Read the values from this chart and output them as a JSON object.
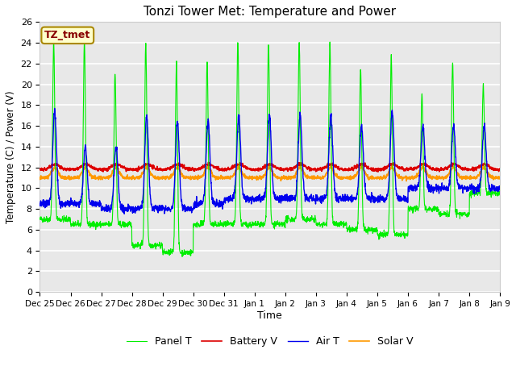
{
  "title": "Tonzi Tower Met: Temperature and Power",
  "xlabel": "Time",
  "ylabel": "Temperature (C) / Power (V)",
  "ylim": [
    0,
    26
  ],
  "legend_labels": [
    "Panel T",
    "Battery V",
    "Air T",
    "Solar V"
  ],
  "legend_colors": [
    "#00ee00",
    "#dd0000",
    "#0000ee",
    "#ff9900"
  ],
  "tag_label": "TZ_tmet",
  "tag_color": "#880000",
  "tag_bg": "#ffffcc",
  "tag_edge": "#aa8800",
  "plot_bg": "#e8e8e8",
  "fig_bg": "#ffffff",
  "grid_color": "#ffffff",
  "xtick_labels": [
    "Dec 25",
    "Dec 26",
    "Dec 27",
    "Dec 28",
    "Dec 29",
    "Dec 30",
    "Dec 31",
    "Jan 1",
    "Jan 2",
    "Jan 3",
    "Jan 4",
    "Jan 5",
    "Jan 6",
    "Jan 7",
    "Jan 8",
    "Jan 9"
  ],
  "num_days": 15,
  "pts_per_day": 144,
  "panel_peaks": [
    24,
    24,
    21,
    24,
    22,
    22,
    24,
    24,
    24,
    24,
    21.5,
    22.5,
    19,
    22,
    20
  ],
  "panel_troughs": [
    7,
    6.5,
    6.5,
    4.5,
    3.8,
    6.5,
    6.5,
    6.5,
    7,
    6.5,
    6,
    5.5,
    8,
    7.5,
    9.5
  ],
  "air_peaks": [
    17.5,
    14,
    14,
    17,
    16.5,
    16.5,
    17,
    17,
    17,
    17,
    16,
    17.5,
    16,
    16,
    16
  ],
  "air_troughs": [
    8.5,
    8.5,
    8,
    8,
    8,
    8.5,
    9,
    9,
    9,
    9,
    9,
    9,
    10,
    10,
    10
  ],
  "battery_base": 11.8,
  "battery_peak": 12.3,
  "solar_base": 11.0,
  "solar_peak": 12.0
}
